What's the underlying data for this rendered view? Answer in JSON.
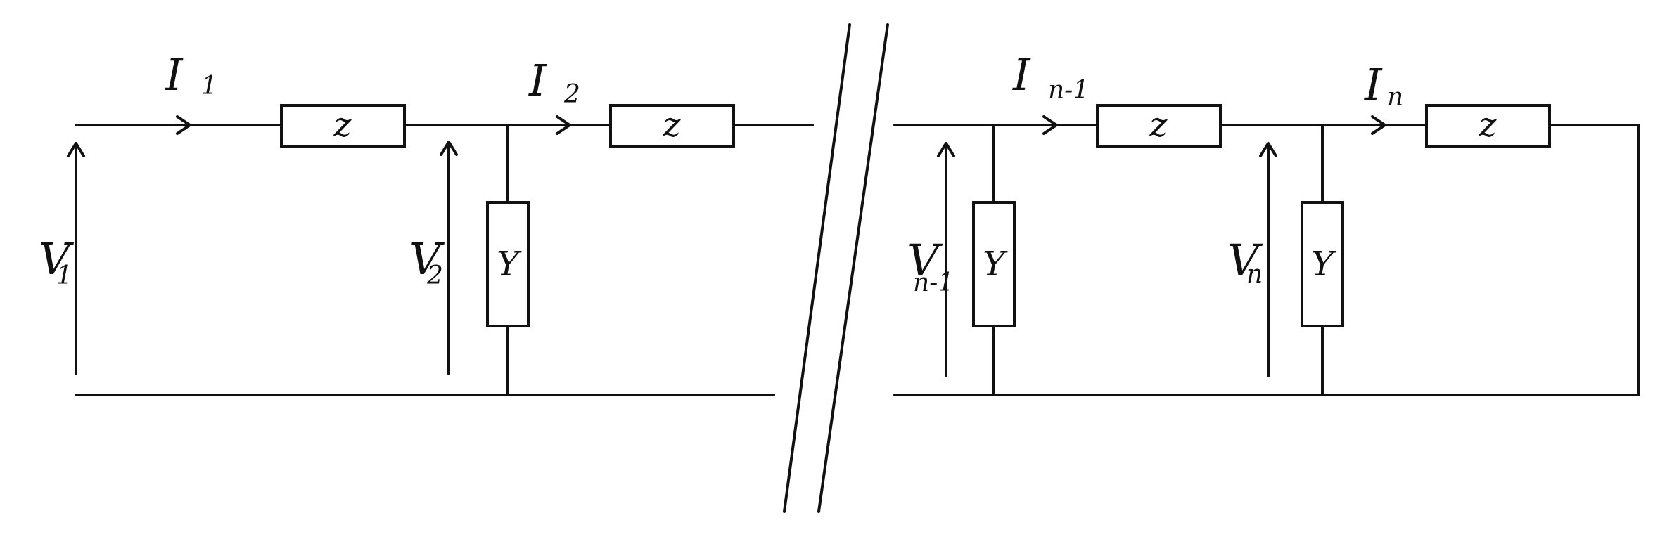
{
  "colors": {
    "ink": "#111111",
    "background": "#ffffff"
  },
  "components": {
    "z": "z",
    "y": "Y"
  },
  "currents": {
    "i1": {
      "main": "I",
      "sub": "1"
    },
    "i2": {
      "main": "I",
      "sub": "2"
    },
    "in_minus_1": {
      "main": "I",
      "sub": "n-1"
    },
    "in": {
      "main": "I",
      "sub": "n"
    }
  },
  "voltages": {
    "v1": {
      "main": "V",
      "sub": "1"
    },
    "v2": {
      "main": "V",
      "sub": "2"
    },
    "vn_minus_1": {
      "main": "V",
      "sub": "n-1"
    },
    "vn": {
      "main": "V",
      "sub": "n"
    }
  }
}
